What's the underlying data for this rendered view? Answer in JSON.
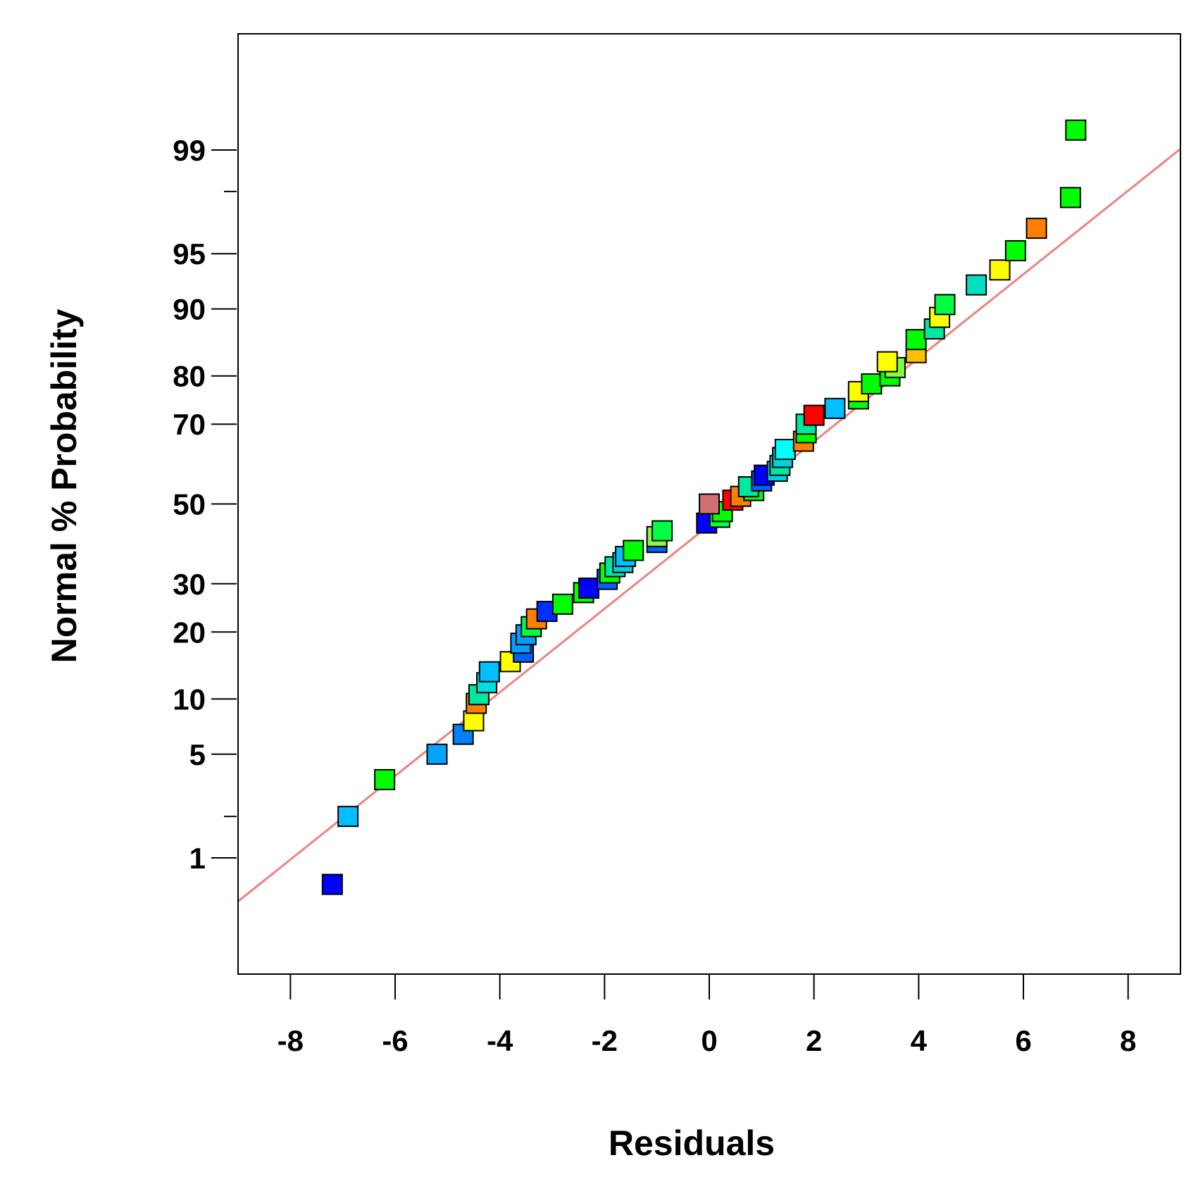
{
  "chart_data": {
    "type": "scatter",
    "title": "",
    "xlabel": "Residuals",
    "ylabel": "Normal % Probability",
    "xlim": [
      -9,
      9
    ],
    "ylim": [
      0.1,
      99.9
    ],
    "y_scale": "normal-probability",
    "grid": false,
    "legend": "none",
    "x_ticks": [
      -8,
      -6,
      -4,
      -2,
      0,
      2,
      4,
      6,
      8
    ],
    "x_tick_labels": [
      "-8",
      "-6",
      "-4",
      "-2",
      "0",
      "2",
      "4",
      "6",
      "8"
    ],
    "y_ticks": [
      1,
      5,
      10,
      20,
      30,
      50,
      70,
      80,
      90,
      95,
      99
    ],
    "y_tick_labels": [
      "1",
      "5",
      "10",
      "20",
      "30",
      "50",
      "70",
      "80",
      "90",
      "95",
      "99"
    ],
    "y_minor_ticks": [
      2,
      98
    ],
    "fit_line": {
      "color": "#f08080",
      "x": [
        -9,
        9
      ],
      "y": [
        0.45,
        99.02
      ]
    },
    "points": [
      {
        "x": -7.2,
        "y": 0.62,
        "color": "#0000ff"
      },
      {
        "x": -6.9,
        "y": 2.0,
        "color": "#00bfff"
      },
      {
        "x": -6.2,
        "y": 3.5,
        "color": "#00ff00"
      },
      {
        "x": -5.2,
        "y": 5.0,
        "color": "#00a5ff"
      },
      {
        "x": -4.7,
        "y": 6.5,
        "color": "#0080ff"
      },
      {
        "x": -4.5,
        "y": 7.7,
        "color": "#ffff00"
      },
      {
        "x": -4.45,
        "y": 9.5,
        "color": "#ff8000"
      },
      {
        "x": -4.4,
        "y": 10.5,
        "color": "#00e8a0"
      },
      {
        "x": -4.25,
        "y": 12.0,
        "color": "#00e0e0"
      },
      {
        "x": -4.2,
        "y": 13.5,
        "color": "#00c0ff"
      },
      {
        "x": -3.8,
        "y": 15.0,
        "color": "#ffff00"
      },
      {
        "x": -3.55,
        "y": 16.5,
        "color": "#0060ff"
      },
      {
        "x": -3.6,
        "y": 18.0,
        "color": "#00a0ff"
      },
      {
        "x": -3.5,
        "y": 19.5,
        "color": "#00a0ff"
      },
      {
        "x": -3.4,
        "y": 21.0,
        "color": "#00ff40"
      },
      {
        "x": -3.3,
        "y": 22.5,
        "color": "#ff8000"
      },
      {
        "x": -3.1,
        "y": 24.0,
        "color": "#0030ff"
      },
      {
        "x": -2.8,
        "y": 25.5,
        "color": "#00ff00"
      },
      {
        "x": -2.4,
        "y": 28.0,
        "color": "#00ff00"
      },
      {
        "x": -2.3,
        "y": 29.0,
        "color": "#0000ff"
      },
      {
        "x": -1.95,
        "y": 31.0,
        "color": "#0060ff"
      },
      {
        "x": -1.9,
        "y": 32.5,
        "color": "#00ff00"
      },
      {
        "x": -1.8,
        "y": 34.0,
        "color": "#00e8a0"
      },
      {
        "x": -1.65,
        "y": 35.0,
        "color": "#00d0e0"
      },
      {
        "x": -1.6,
        "y": 36.5,
        "color": "#00c0ff"
      },
      {
        "x": -1.45,
        "y": 38.0,
        "color": "#00ff00"
      },
      {
        "x": -1.0,
        "y": 40.0,
        "color": "#0060ff"
      },
      {
        "x": -1.0,
        "y": 41.5,
        "color": "#80ff40"
      },
      {
        "x": -0.9,
        "y": 43.0,
        "color": "#00ff40"
      },
      {
        "x": -0.05,
        "y": 45.0,
        "color": "#0000ff"
      },
      {
        "x": 0.2,
        "y": 46.5,
        "color": "#00ff40"
      },
      {
        "x": 0.25,
        "y": 48.0,
        "color": "#00ff00"
      },
      {
        "x": 0.0,
        "y": 50.0,
        "color": "#d07070"
      },
      {
        "x": 0.45,
        "y": 51.0,
        "color": "#ff0000"
      },
      {
        "x": 0.6,
        "y": 52.0,
        "color": "#ff8000"
      },
      {
        "x": 0.85,
        "y": 53.5,
        "color": "#00ff00"
      },
      {
        "x": 0.75,
        "y": 54.5,
        "color": "#00e8a0"
      },
      {
        "x": 1.0,
        "y": 56.0,
        "color": "#0060ff"
      },
      {
        "x": 1.05,
        "y": 57.5,
        "color": "#0000ff"
      },
      {
        "x": 1.3,
        "y": 58.5,
        "color": "#00d0e0"
      },
      {
        "x": 1.35,
        "y": 60.0,
        "color": "#00e8a0"
      },
      {
        "x": 1.4,
        "y": 62.0,
        "color": "#00d0e0"
      },
      {
        "x": 1.45,
        "y": 64.0,
        "color": "#00ffff"
      },
      {
        "x": 1.8,
        "y": 66.0,
        "color": "#ff8000"
      },
      {
        "x": 1.85,
        "y": 68.0,
        "color": "#00ff00"
      },
      {
        "x": 1.85,
        "y": 70.0,
        "color": "#00e8a0"
      },
      {
        "x": 2.0,
        "y": 72.0,
        "color": "#ff0000"
      },
      {
        "x": 2.4,
        "y": 73.5,
        "color": "#00c0ff"
      },
      {
        "x": 2.85,
        "y": 75.5,
        "color": "#00ff00"
      },
      {
        "x": 2.85,
        "y": 77.0,
        "color": "#ffff00"
      },
      {
        "x": 3.1,
        "y": 78.5,
        "color": "#00ff00"
      },
      {
        "x": 3.45,
        "y": 80.0,
        "color": "#00ff00"
      },
      {
        "x": 3.55,
        "y": 81.5,
        "color": "#80ff40"
      },
      {
        "x": 3.4,
        "y": 82.5,
        "color": "#ffff00"
      },
      {
        "x": 3.95,
        "y": 84.0,
        "color": "#ffc000"
      },
      {
        "x": 3.95,
        "y": 86.0,
        "color": "#00ff00"
      },
      {
        "x": 4.3,
        "y": 87.5,
        "color": "#00e8a0"
      },
      {
        "x": 4.4,
        "y": 89.0,
        "color": "#ffff00"
      },
      {
        "x": 4.5,
        "y": 90.5,
        "color": "#00ff40"
      },
      {
        "x": 5.1,
        "y": 92.5,
        "color": "#00e0c0"
      },
      {
        "x": 5.55,
        "y": 93.8,
        "color": "#ffff00"
      },
      {
        "x": 5.85,
        "y": 95.2,
        "color": "#00ff00"
      },
      {
        "x": 6.25,
        "y": 96.5,
        "color": "#ff8000"
      },
      {
        "x": 6.9,
        "y": 97.8,
        "color": "#00ff00"
      },
      {
        "x": 7.0,
        "y": 99.3,
        "color": "#00ff00"
      }
    ]
  }
}
